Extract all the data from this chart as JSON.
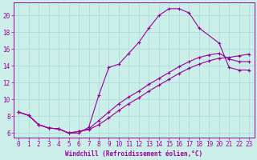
{
  "xlabel": "Windchill (Refroidissement éolien,°C)",
  "bg_color": "#cceee8",
  "line_color": "#990099",
  "grid_color": "#aadddd",
  "xlim": [
    -0.5,
    23.5
  ],
  "ylim": [
    5.5,
    21.5
  ],
  "yticks": [
    6,
    8,
    10,
    12,
    14,
    16,
    18,
    20
  ],
  "xticks": [
    0,
    1,
    2,
    3,
    4,
    5,
    6,
    7,
    8,
    9,
    10,
    11,
    12,
    13,
    14,
    15,
    16,
    17,
    18,
    19,
    20,
    21,
    22,
    23
  ],
  "curve1_x": [
    0,
    1,
    2,
    3,
    4,
    5,
    6,
    7,
    8,
    9,
    10,
    11,
    12,
    13,
    14,
    15,
    16,
    17,
    18,
    20,
    21,
    22,
    23
  ],
  "curve1_y": [
    8.5,
    8.1,
    7.0,
    6.6,
    6.5,
    6.0,
    6.0,
    6.7,
    10.5,
    13.8,
    14.2,
    15.5,
    16.8,
    18.5,
    20.0,
    20.8,
    20.8,
    20.3,
    18.5,
    16.7,
    13.8,
    13.5,
    13.5
  ],
  "curve2_x": [
    0,
    1,
    2,
    3,
    4,
    5,
    6,
    7,
    8,
    9,
    10,
    11,
    12,
    13,
    14,
    15,
    16,
    17,
    18,
    19,
    20,
    21,
    22,
    23
  ],
  "curve2_y": [
    8.5,
    8.1,
    7.0,
    6.6,
    6.5,
    6.0,
    6.2,
    6.5,
    7.5,
    8.5,
    9.5,
    10.3,
    11.0,
    11.8,
    12.5,
    13.2,
    13.9,
    14.5,
    15.0,
    15.3,
    15.5,
    14.8,
    14.5,
    14.5
  ],
  "curve3_x": [
    0,
    1,
    2,
    3,
    4,
    5,
    6,
    7,
    8,
    9,
    10,
    11,
    12,
    13,
    14,
    15,
    16,
    17,
    18,
    19,
    20,
    21,
    22,
    23
  ],
  "curve3_y": [
    8.5,
    8.1,
    7.0,
    6.6,
    6.5,
    6.0,
    6.2,
    6.4,
    7.0,
    7.8,
    8.7,
    9.5,
    10.2,
    11.0,
    11.7,
    12.4,
    13.1,
    13.7,
    14.2,
    14.6,
    14.9,
    15.0,
    15.2,
    15.4
  ],
  "label_fontsize": 5.5,
  "tick_fontsize": 5.5
}
